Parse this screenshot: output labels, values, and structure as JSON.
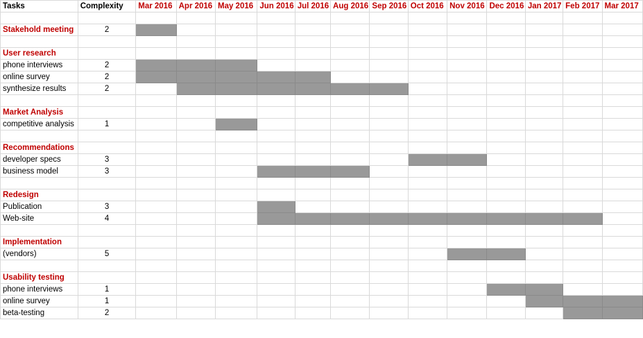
{
  "header": {
    "tasks": "Tasks",
    "complexity": "Complexity"
  },
  "months": [
    "Mar 2016",
    "Apr 2016",
    "May 2016",
    "Jun 2016",
    "Jul 2016",
    "Aug 2016",
    "Sep 2016",
    "Oct 2016",
    "Nov 2016",
    "Dec 2016",
    "Jan 2017",
    "Feb 2017",
    "Mar 2017"
  ],
  "rows": [
    {
      "type": "blank"
    },
    {
      "type": "group",
      "label": "Stakehold meeting",
      "complexity": "2",
      "bar": [
        0,
        0
      ]
    },
    {
      "type": "blank"
    },
    {
      "type": "group",
      "label": "User research"
    },
    {
      "type": "task",
      "label": "phone interviews",
      "complexity": "2",
      "bar": [
        0,
        2
      ]
    },
    {
      "type": "task",
      "label": "online survey",
      "complexity": "2",
      "bar": [
        0,
        4
      ]
    },
    {
      "type": "task",
      "label": "synthesize results",
      "complexity": "2",
      "bar": [
        1,
        6
      ]
    },
    {
      "type": "blank"
    },
    {
      "type": "group",
      "label": "Market Analysis"
    },
    {
      "type": "task",
      "label": "competitive analysis",
      "complexity": "1",
      "bar": [
        2,
        2
      ]
    },
    {
      "type": "blank"
    },
    {
      "type": "group",
      "label": "Recommendations"
    },
    {
      "type": "task",
      "label": "developer specs",
      "complexity": "3",
      "bar": [
        7,
        8
      ]
    },
    {
      "type": "task",
      "label": "business model",
      "complexity": "3",
      "bar": [
        3,
        5
      ]
    },
    {
      "type": "blank"
    },
    {
      "type": "group",
      "label": "Redesign"
    },
    {
      "type": "task",
      "label": "Publication",
      "complexity": "3",
      "bar": [
        3,
        3
      ]
    },
    {
      "type": "task",
      "label": "Web-site",
      "complexity": "4",
      "bar": [
        3,
        11
      ]
    },
    {
      "type": "blank"
    },
    {
      "type": "group",
      "label": "Implementation"
    },
    {
      "type": "task",
      "label": "(vendors)",
      "complexity": "5",
      "bar": [
        8,
        9
      ]
    },
    {
      "type": "blank"
    },
    {
      "type": "group",
      "label": "Usability testing"
    },
    {
      "type": "task",
      "label": "phone interviews",
      "complexity": "1",
      "bar": [
        9,
        10
      ]
    },
    {
      "type": "task",
      "label": "online survey",
      "complexity": "1",
      "bar": [
        10,
        12
      ]
    },
    {
      "type": "task",
      "label": "beta-testing",
      "complexity": "2",
      "bar": [
        11,
        12
      ]
    }
  ]
}
